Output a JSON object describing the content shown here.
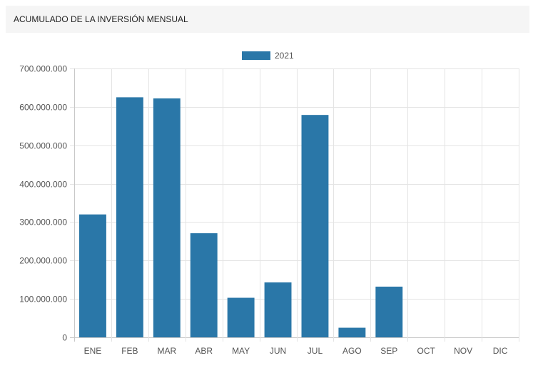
{
  "panel": {
    "title": "ACUMULADO DE LA INVERSIÓN MENSUAL"
  },
  "colors": {
    "bar": "#2a77a8",
    "grid": "#e4e4e4",
    "axis": "#c8c8c8",
    "header_bg": "#f5f5f5"
  },
  "chart_data": {
    "type": "bar",
    "title": "",
    "xlabel": "",
    "ylabel": "",
    "categories": [
      "ENE",
      "FEB",
      "MAR",
      "ABR",
      "MAY",
      "JUN",
      "JUL",
      "AGO",
      "SEP",
      "OCT",
      "NOV",
      "DIC"
    ],
    "series": [
      {
        "name": "2021",
        "values": [
          320000000,
          625000000,
          622000000,
          271000000,
          103000000,
          143000000,
          579000000,
          25000000,
          132000000,
          0,
          0,
          0
        ]
      }
    ],
    "ylim": [
      0,
      700000000
    ],
    "yticks": [
      "0",
      "100.000.000",
      "200.000.000",
      "300.000.000",
      "400.000.000",
      "500.000.000",
      "600.000.000",
      "700.000.000"
    ],
    "grid": true,
    "legend_position": "top-center"
  }
}
